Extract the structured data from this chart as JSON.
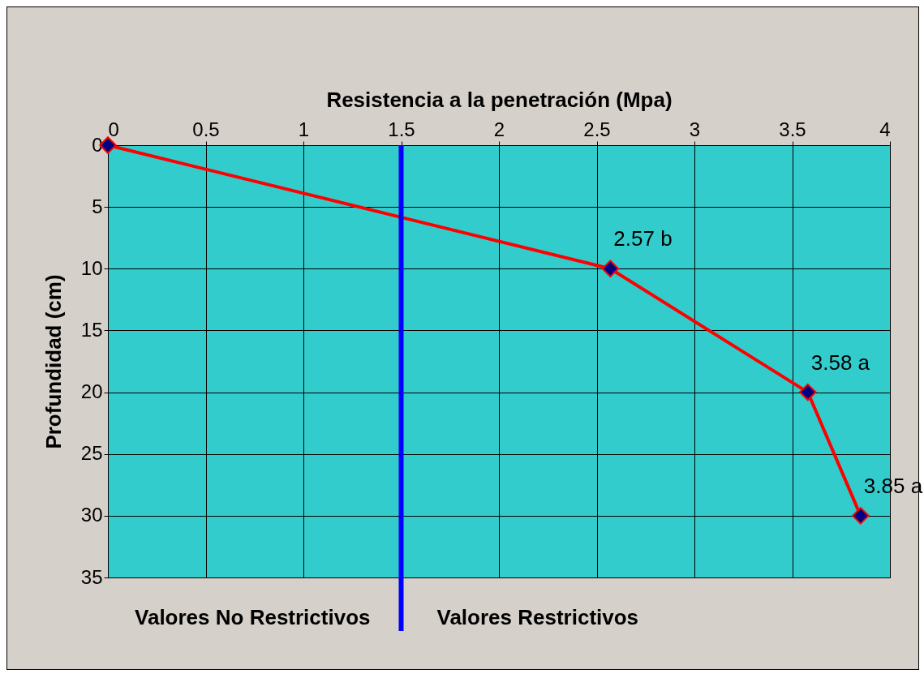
{
  "chart_data": {
    "type": "line",
    "xlabel": "Resistencia a la penetración (Mpa)",
    "ylabel": "Profundidad (cm)",
    "series": [
      {
        "x": [
          0,
          2.57,
          3.58,
          3.85
        ],
        "values": [
          0,
          10,
          20,
          30
        ],
        "color": "#ff0000"
      }
    ],
    "xlim": [
      0,
      4
    ],
    "xticks": [
      0,
      0.5,
      1,
      1.5,
      2,
      2.5,
      3,
      3.5,
      4
    ],
    "ylim": [
      35,
      0
    ],
    "yticks": [
      0,
      5,
      10,
      15,
      20,
      25,
      30,
      35
    ],
    "grid": true,
    "marker": "diamond",
    "line_style": "solid",
    "ref_lines": [
      {
        "axis": "x",
        "value": 1.5,
        "color": "#0000ff"
      }
    ],
    "annotations": [
      {
        "text": "2.57 b",
        "x": 2.57,
        "y": 10
      },
      {
        "text": "3.58 a",
        "x": 3.58,
        "y": 20
      },
      {
        "text": "3.85 a",
        "x": 3.85,
        "y": 30
      },
      "Valores No Restrictivos",
      "Valores Restrictivos"
    ]
  }
}
